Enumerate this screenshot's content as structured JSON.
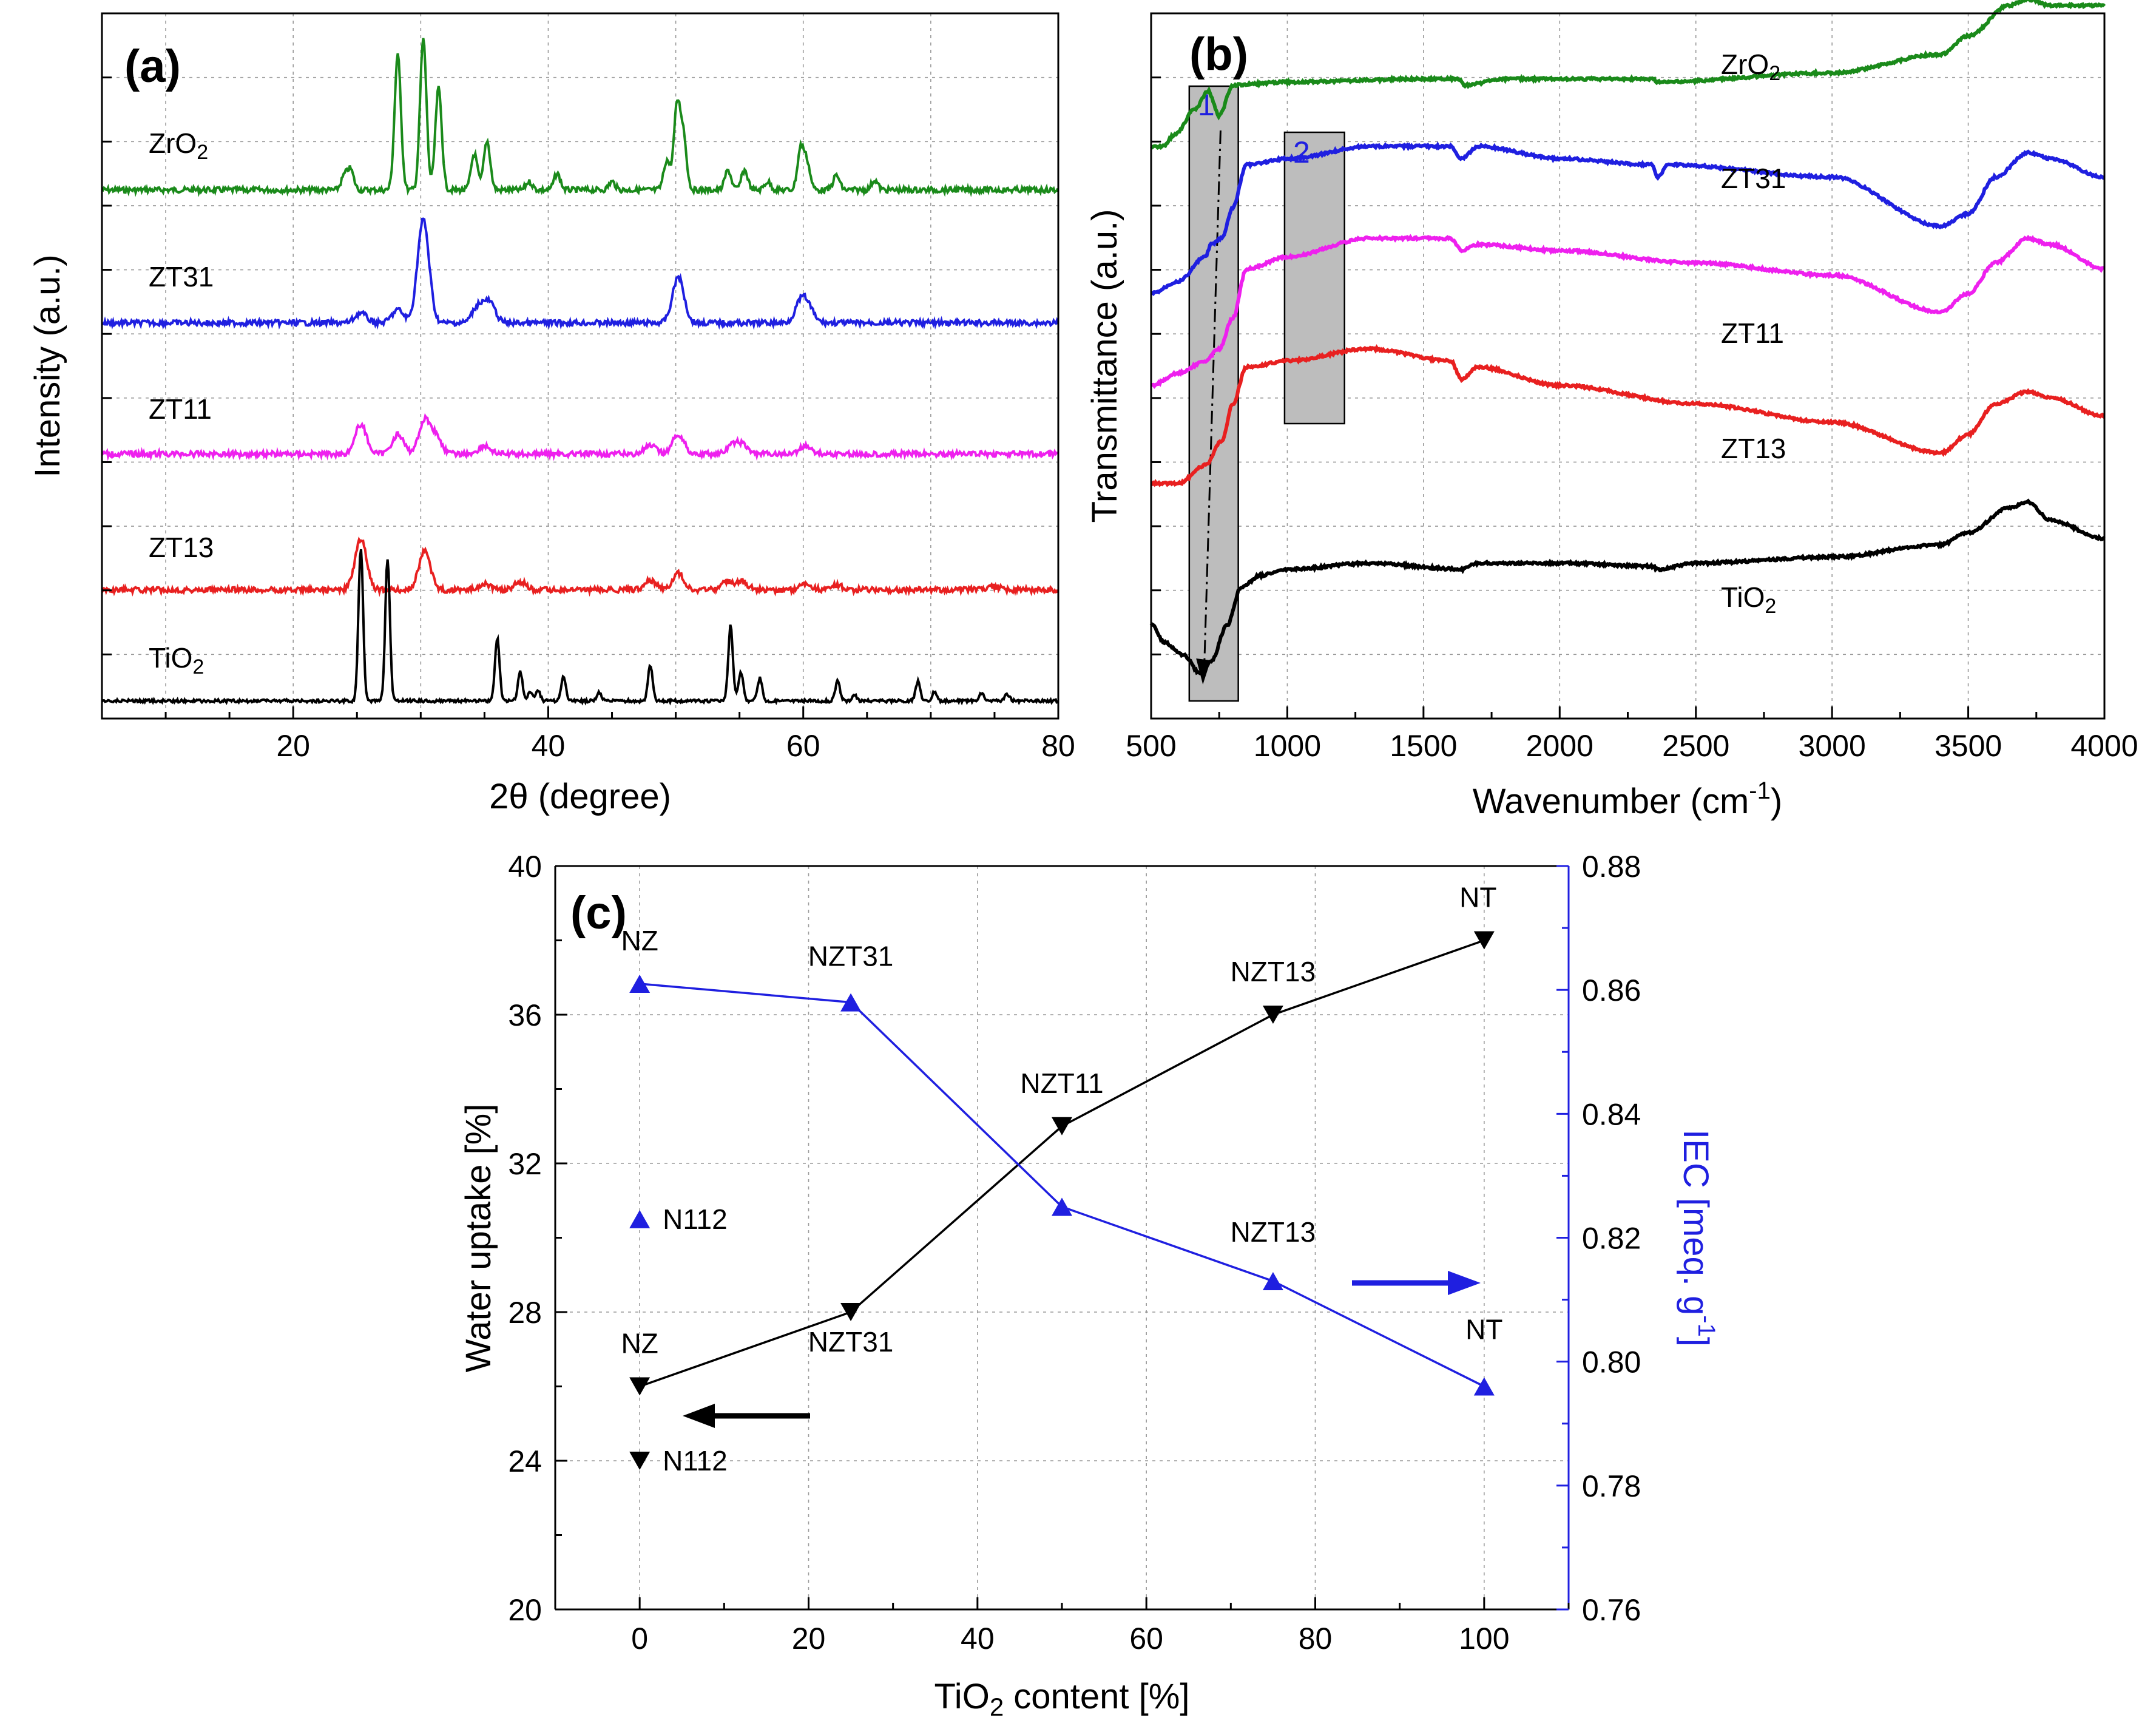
{
  "chart_data": [
    {
      "panel": "(a)",
      "type": "line",
      "xlabel": "2θ (degree)",
      "ylabel": "Intensity (a.u.)",
      "xlim": [
        5,
        80
      ],
      "x_ticks": [
        "20",
        "40",
        "60",
        "80"
      ],
      "grid": true,
      "series": [
        {
          "name": "ZrO2",
          "label_main": "ZrO",
          "label_sub": "2",
          "color": "#1a8a1a",
          "peaks": [
            [
              24.0,
              0.08
            ],
            [
              24.5,
              0.12
            ],
            [
              28.2,
              0.82
            ],
            [
              30.2,
              0.92
            ],
            [
              31.4,
              0.62
            ],
            [
              34.2,
              0.22
            ],
            [
              35.2,
              0.3
            ],
            [
              38.5,
              0.05
            ],
            [
              40.7,
              0.1
            ],
            [
              45.0,
              0.05
            ],
            [
              49.3,
              0.18
            ],
            [
              50.1,
              0.5
            ],
            [
              50.6,
              0.32
            ],
            [
              54.1,
              0.12
            ],
            [
              55.4,
              0.12
            ],
            [
              57.2,
              0.05
            ],
            [
              59.8,
              0.25
            ],
            [
              60.3,
              0.16
            ],
            [
              62.6,
              0.09
            ],
            [
              65.6,
              0.06
            ]
          ]
        },
        {
          "name": "ZT31",
          "label_main": "ZT31",
          "label_sub": "",
          "color": "#1f1fe0",
          "peaks": [
            [
              25.3,
              0.06
            ],
            [
              28.2,
              0.08
            ],
            [
              30.2,
              0.63
            ],
            [
              34.5,
              0.1
            ],
            [
              35.4,
              0.12
            ],
            [
              50.2,
              0.28
            ],
            [
              59.8,
              0.12
            ],
            [
              60.4,
              0.08
            ]
          ]
        },
        {
          "name": "ZT11",
          "label_main": "ZT11",
          "label_sub": "",
          "color": "#ee20ee",
          "peaks": [
            [
              25.3,
              0.18
            ],
            [
              28.2,
              0.12
            ],
            [
              30.3,
              0.2
            ],
            [
              31.2,
              0.1
            ],
            [
              35.0,
              0.05
            ],
            [
              48.0,
              0.05
            ],
            [
              50.2,
              0.12
            ],
            [
              54.5,
              0.05
            ],
            [
              55.2,
              0.05
            ],
            [
              60.2,
              0.05
            ]
          ]
        },
        {
          "name": "ZT13",
          "label_main": "ZT13",
          "label_sub": "",
          "color": "#e82020",
          "peaks": [
            [
              25.3,
              0.31
            ],
            [
              30.3,
              0.24
            ],
            [
              35.0,
              0.04
            ],
            [
              37.8,
              0.05
            ],
            [
              48.0,
              0.06
            ],
            [
              50.2,
              0.1
            ],
            [
              54.0,
              0.05
            ],
            [
              55.2,
              0.05
            ],
            [
              60.2,
              0.04
            ],
            [
              62.6,
              0.03
            ],
            [
              75.0,
              0.02
            ]
          ]
        },
        {
          "name": "TiO2",
          "label_main": "TiO",
          "label_sub": "2",
          "color": "#000000",
          "peaks": [
            [
              25.3,
              0.94
            ],
            [
              27.4,
              0.87
            ],
            [
              36.0,
              0.38
            ],
            [
              37.8,
              0.18
            ],
            [
              38.6,
              0.06
            ],
            [
              39.2,
              0.06
            ],
            [
              41.2,
              0.15
            ],
            [
              44.0,
              0.05
            ],
            [
              48.0,
              0.22
            ],
            [
              54.3,
              0.46
            ],
            [
              55.1,
              0.18
            ],
            [
              56.6,
              0.14
            ],
            [
              62.7,
              0.12
            ],
            [
              64.0,
              0.04
            ],
            [
              69.0,
              0.12
            ],
            [
              70.3,
              0.06
            ],
            [
              74.0,
              0.05
            ],
            [
              76.0,
              0.04
            ]
          ]
        }
      ]
    },
    {
      "panel": "(b)",
      "type": "line",
      "xlabel_main": "Wavenumber (cm",
      "xlabel_sup": "-1",
      "xlabel_end": ")",
      "ylabel": "Transmittance (a.u.)",
      "xlim": [
        500,
        4000
      ],
      "x_ticks": [
        "500",
        "1000",
        "1500",
        "2000",
        "2500",
        "3000",
        "3500",
        "4000"
      ],
      "grid": true,
      "regions": [
        {
          "label": "1",
          "x_range": [
            640,
            820
          ],
          "color": "#1f1fe0"
        },
        {
          "label": "2",
          "x_range": [
            990,
            1210
          ],
          "color": "#1f1fe0"
        }
      ],
      "series": [
        {
          "name": "ZrO2",
          "label_main": "ZrO",
          "label_sub": "2",
          "color": "#1a8a1a",
          "points": [
            [
              500,
              0.88
            ],
            [
              540,
              0.88
            ],
            [
              590,
              0.9
            ],
            [
              660,
              0.94
            ],
            [
              710,
              0.97
            ],
            [
              750,
              0.93
            ],
            [
              800,
              0.98
            ],
            [
              1000,
              0.985
            ],
            [
              1500,
              0.99
            ],
            [
              1630,
              0.99
            ],
            [
              1650,
              0.98
            ],
            [
              1800,
              0.99
            ],
            [
              2340,
              0.99
            ],
            [
              2360,
              0.985
            ],
            [
              3000,
              1.0
            ],
            [
              3400,
              1.03
            ],
            [
              3500,
              1.06
            ],
            [
              3650,
              1.11
            ],
            [
              3720,
              1.12
            ],
            [
              3800,
              1.11
            ],
            [
              4000,
              1.11
            ]
          ]
        },
        {
          "name": "ZT31",
          "label_main": "ZT31",
          "label_sub": "",
          "color": "#1f1fe0",
          "points": [
            [
              500,
              0.64
            ],
            [
              600,
              0.66
            ],
            [
              700,
              0.7
            ],
            [
              720,
              0.72
            ],
            [
              760,
              0.73
            ],
            [
              800,
              0.78
            ],
            [
              850,
              0.85
            ],
            [
              1000,
              0.86
            ],
            [
              1300,
              0.88
            ],
            [
              1600,
              0.88
            ],
            [
              1640,
              0.86
            ],
            [
              1700,
              0.88
            ],
            [
              2000,
              0.86
            ],
            [
              2340,
              0.85
            ],
            [
              2360,
              0.83
            ],
            [
              2400,
              0.85
            ],
            [
              3000,
              0.83
            ],
            [
              3400,
              0.75
            ],
            [
              3500,
              0.77
            ],
            [
              3600,
              0.83
            ],
            [
              3720,
              0.87
            ],
            [
              3800,
              0.86
            ],
            [
              4000,
              0.83
            ]
          ]
        },
        {
          "name": "ZT11",
          "label_main": "ZT11",
          "label_sub": "",
          "color": "#ee20ee",
          "points": [
            [
              500,
              0.49
            ],
            [
              600,
              0.51
            ],
            [
              700,
              0.53
            ],
            [
              750,
              0.55
            ],
            [
              800,
              0.6
            ],
            [
              850,
              0.68
            ],
            [
              1000,
              0.7
            ],
            [
              1300,
              0.73
            ],
            [
              1600,
              0.73
            ],
            [
              1640,
              0.71
            ],
            [
              1700,
              0.72
            ],
            [
              2000,
              0.71
            ],
            [
              2500,
              0.69
            ],
            [
              3000,
              0.67
            ],
            [
              3400,
              0.61
            ],
            [
              3500,
              0.64
            ],
            [
              3600,
              0.69
            ],
            [
              3720,
              0.73
            ],
            [
              3800,
              0.72
            ],
            [
              4000,
              0.68
            ]
          ]
        },
        {
          "name": "ZT13",
          "label_main": "ZT13",
          "label_sub": "",
          "color": "#e82020",
          "points": [
            [
              500,
              0.33
            ],
            [
              600,
              0.33
            ],
            [
              700,
              0.36
            ],
            [
              760,
              0.4
            ],
            [
              800,
              0.46
            ],
            [
              850,
              0.52
            ],
            [
              1000,
              0.53
            ],
            [
              1300,
              0.55
            ],
            [
              1600,
              0.53
            ],
            [
              1640,
              0.5
            ],
            [
              1700,
              0.52
            ],
            [
              2000,
              0.49
            ],
            [
              2500,
              0.46
            ],
            [
              3000,
              0.43
            ],
            [
              3400,
              0.38
            ],
            [
              3500,
              0.41
            ],
            [
              3600,
              0.46
            ],
            [
              3720,
              0.48
            ],
            [
              3800,
              0.47
            ],
            [
              4000,
              0.44
            ]
          ]
        },
        {
          "name": "TiO2",
          "label_main": "TiO",
          "label_sub": "2",
          "color": "#000000",
          "points": [
            [
              500,
              0.1
            ],
            [
              550,
              0.07
            ],
            [
              620,
              0.05
            ],
            [
              680,
              0.02
            ],
            [
              720,
              0.04
            ],
            [
              780,
              0.1
            ],
            [
              830,
              0.16
            ],
            [
              900,
              0.18
            ],
            [
              1000,
              0.19
            ],
            [
              1300,
              0.2
            ],
            [
              1640,
              0.19
            ],
            [
              1700,
              0.2
            ],
            [
              2000,
              0.2
            ],
            [
              2340,
              0.195
            ],
            [
              2360,
              0.19
            ],
            [
              2500,
              0.2
            ],
            [
              3000,
              0.21
            ],
            [
              3400,
              0.23
            ],
            [
              3500,
              0.25
            ],
            [
              3650,
              0.29
            ],
            [
              3720,
              0.3
            ],
            [
              3800,
              0.27
            ],
            [
              4000,
              0.24
            ]
          ]
        }
      ]
    },
    {
      "panel": "(c)",
      "type": "line",
      "xlabel_main": "TiO",
      "xlabel_sub": "2",
      "xlabel_end": " content [%]",
      "ylabel": "Water uptake [%]",
      "y2label_main": "IEC [meq. g",
      "y2label_sup": "-1",
      "y2label_end": "]",
      "xlim": [
        -10,
        110
      ],
      "ylim": [
        20,
        40
      ],
      "y2lim": [
        0.76,
        0.88
      ],
      "x_ticks": [
        "0",
        "20",
        "40",
        "60",
        "80",
        "100"
      ],
      "y_ticks": [
        "20",
        "24",
        "28",
        "32",
        "36",
        "40"
      ],
      "y2_ticks": [
        "0.76",
        "0.78",
        "0.80",
        "0.82",
        "0.84",
        "0.86",
        "0.88"
      ],
      "grid": true,
      "series": [
        {
          "name": "Water uptake",
          "axis": "left",
          "color": "#000000",
          "marker": "triangle-down",
          "x": [
            0,
            25,
            50,
            75,
            100
          ],
          "y": [
            26,
            28,
            33,
            36,
            38
          ],
          "labels": [
            "NZ",
            "NZT31",
            "NZT11",
            "NZT13",
            "NT"
          ]
        },
        {
          "name": "IEC",
          "axis": "right",
          "color": "#1f1fe0",
          "marker": "triangle-up",
          "x": [
            0,
            25,
            50,
            75,
            100
          ],
          "y": [
            0.861,
            0.858,
            0.825,
            0.813,
            0.796
          ],
          "labels": [
            "NZ",
            "NZT31",
            "",
            "NZT13",
            "NT"
          ]
        }
      ],
      "references": [
        {
          "label": "N112",
          "axis": "left",
          "x": 0,
          "y": 24,
          "color": "#000000",
          "marker": "triangle-down"
        },
        {
          "label": "N112",
          "axis": "right",
          "x": 0,
          "y": 0.823,
          "color": "#1f1fe0",
          "marker": "triangle-up"
        }
      ]
    }
  ]
}
